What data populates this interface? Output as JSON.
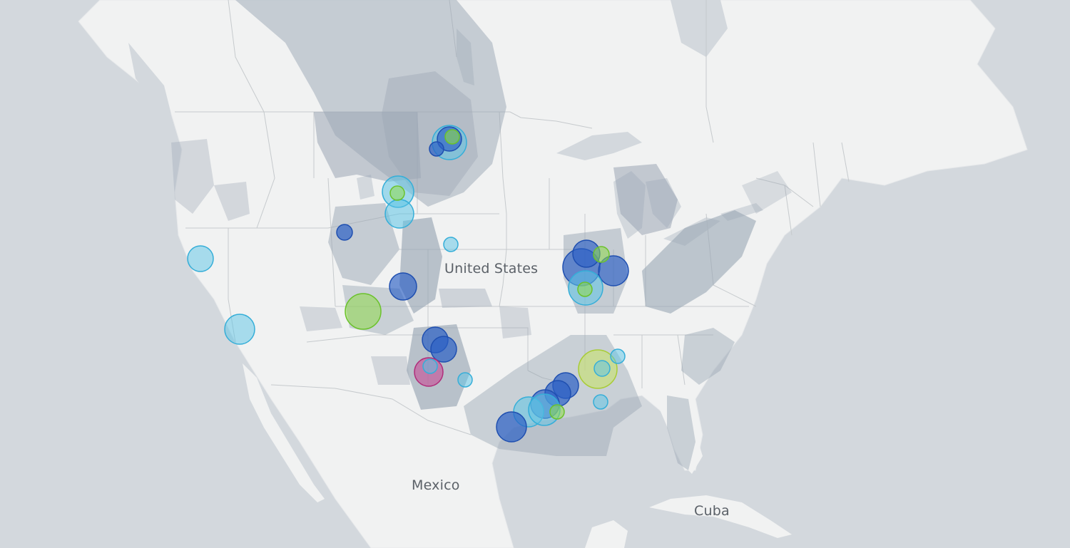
{
  "map": {
    "labels": {
      "us": "United States",
      "mexico": "Mexico",
      "cuba": "Cuba"
    },
    "colors": {
      "water": "#d3d8dd",
      "land": "#f1f2f2",
      "border": "#c4c8cc",
      "basin": "#9aa6b4",
      "marker_dark_blue": "#2b5fc4",
      "marker_light_blue": "#5cc4e6",
      "marker_green": "#8ed84a",
      "marker_yellow_green": "#c8e36a",
      "marker_magenta": "#c8408f"
    }
  }
}
